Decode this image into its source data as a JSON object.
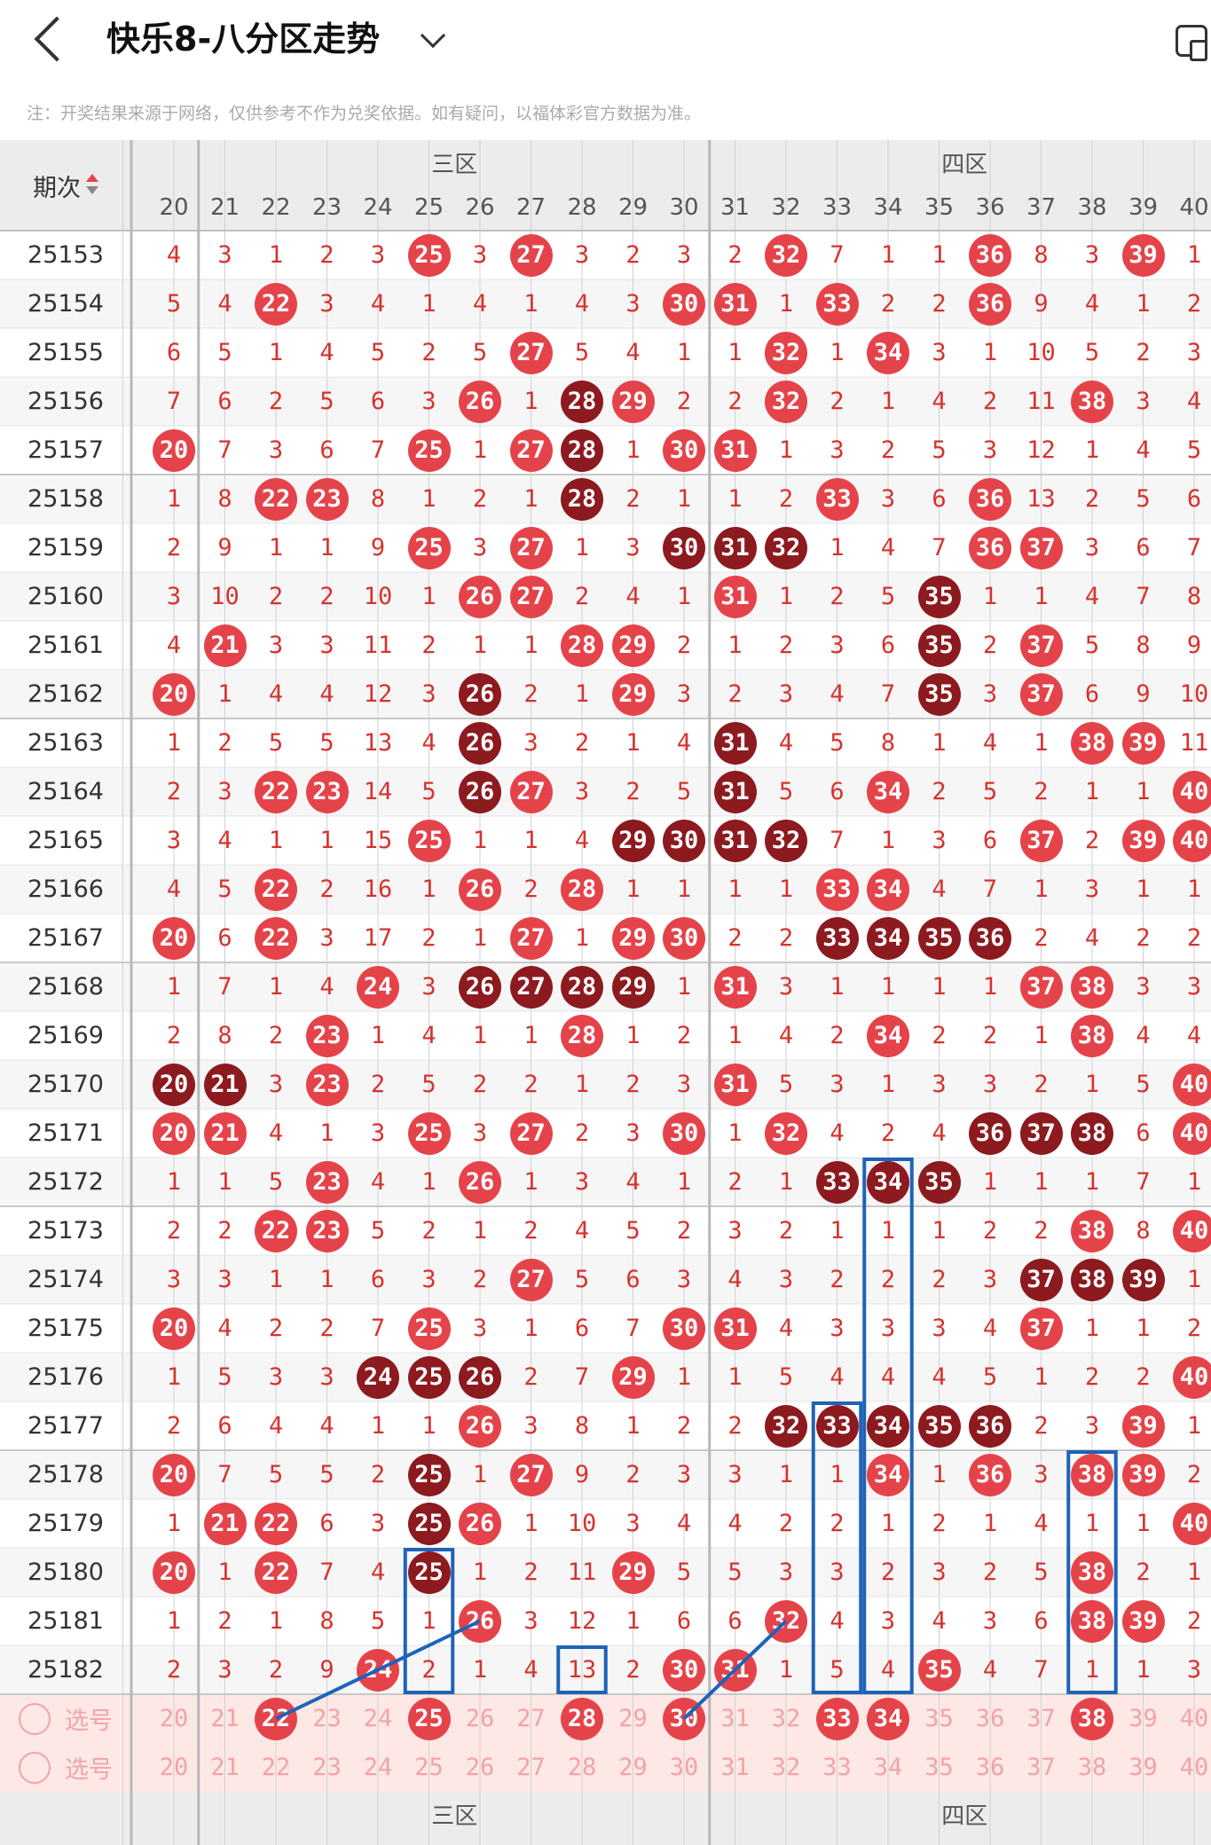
{
  "header": {
    "title": "快乐8-八分区走势"
  },
  "note": "注：开奖结果来源于网络，仅供参考不作为兑奖依据。如有疑问，以福体彩官方数据为准。",
  "table": {
    "issue_header": "期次",
    "zones": [
      {
        "label": "三区"
      },
      {
        "label": "四区"
      }
    ],
    "columns": [
      20,
      21,
      22,
      23,
      24,
      25,
      26,
      27,
      28,
      29,
      30,
      31,
      32,
      33,
      34,
      35,
      36,
      37,
      38,
      39,
      40
    ],
    "rows": [
      {
        "issue": "25153",
        "vals": [
          4,
          3,
          1,
          2,
          3,
          "25",
          3,
          "27",
          3,
          2,
          3,
          2,
          "32",
          7,
          1,
          1,
          "36",
          8,
          3,
          "39",
          1
        ]
      },
      {
        "issue": "25154",
        "vals": [
          5,
          4,
          "22",
          3,
          4,
          1,
          4,
          1,
          4,
          3,
          "30",
          "31",
          1,
          "33",
          2,
          2,
          "36",
          9,
          4,
          1,
          2
        ]
      },
      {
        "issue": "25155",
        "vals": [
          6,
          5,
          1,
          4,
          5,
          2,
          5,
          "27",
          5,
          4,
          1,
          1,
          "32",
          1,
          "34",
          3,
          1,
          10,
          5,
          2,
          3
        ]
      },
      {
        "issue": "25156",
        "vals": [
          7,
          6,
          2,
          5,
          6,
          3,
          "26",
          1,
          "d28",
          "29",
          2,
          2,
          "32",
          2,
          1,
          4,
          2,
          11,
          "38",
          3,
          4
        ]
      },
      {
        "issue": "25157",
        "vals": [
          "20",
          7,
          3,
          6,
          7,
          "25",
          1,
          "27",
          "d28",
          1,
          "30",
          "31",
          1,
          3,
          2,
          5,
          3,
          12,
          1,
          4,
          5
        ]
      },
      {
        "issue": "25158",
        "vals": [
          1,
          8,
          "22",
          "23",
          8,
          1,
          2,
          1,
          "d28",
          2,
          1,
          1,
          2,
          "33",
          3,
          6,
          "36",
          13,
          2,
          5,
          6
        ]
      },
      {
        "issue": "25159",
        "vals": [
          2,
          9,
          1,
          1,
          9,
          "25",
          3,
          "27",
          1,
          3,
          "d30",
          "d31",
          "d32",
          1,
          4,
          7,
          "36",
          "37",
          3,
          6,
          7
        ]
      },
      {
        "issue": "25160",
        "vals": [
          3,
          10,
          2,
          2,
          10,
          1,
          "26",
          "27",
          2,
          4,
          1,
          "31",
          1,
          2,
          5,
          "d35",
          1,
          1,
          4,
          7,
          8
        ]
      },
      {
        "issue": "25161",
        "vals": [
          4,
          "21",
          3,
          3,
          11,
          2,
          1,
          1,
          "28",
          "29",
          2,
          1,
          2,
          3,
          6,
          "d35",
          2,
          "37",
          5,
          8,
          9
        ]
      },
      {
        "issue": "25162",
        "vals": [
          "20",
          1,
          4,
          4,
          12,
          3,
          "d26",
          2,
          1,
          "29",
          3,
          2,
          3,
          4,
          7,
          "d35",
          3,
          "37",
          6,
          9,
          10
        ]
      },
      {
        "issue": "25163",
        "vals": [
          1,
          2,
          5,
          5,
          13,
          4,
          "d26",
          3,
          2,
          1,
          4,
          "d31",
          4,
          5,
          8,
          1,
          4,
          1,
          "38",
          "39",
          11
        ]
      },
      {
        "issue": "25164",
        "vals": [
          2,
          3,
          "22",
          "23",
          14,
          5,
          "d26",
          "27",
          3,
          2,
          5,
          "d31",
          5,
          6,
          "34",
          2,
          5,
          2,
          1,
          1,
          "40"
        ]
      },
      {
        "issue": "25165",
        "vals": [
          3,
          4,
          1,
          1,
          15,
          "25",
          1,
          1,
          4,
          "d29",
          "d30",
          "d31",
          "d32",
          7,
          1,
          3,
          6,
          "37",
          2,
          "39",
          "40"
        ]
      },
      {
        "issue": "25166",
        "vals": [
          4,
          5,
          "22",
          2,
          16,
          1,
          "26",
          2,
          "28",
          1,
          1,
          1,
          1,
          "33",
          "34",
          4,
          7,
          1,
          3,
          1,
          1
        ]
      },
      {
        "issue": "25167",
        "vals": [
          "20",
          6,
          "22",
          3,
          17,
          2,
          1,
          "27",
          1,
          "29",
          "30",
          2,
          2,
          "d33",
          "d34",
          "d35",
          "d36",
          2,
          4,
          2,
          2
        ]
      },
      {
        "issue": "25168",
        "vals": [
          1,
          7,
          1,
          4,
          "24",
          3,
          "d26",
          "d27",
          "d28",
          "d29",
          1,
          "31",
          3,
          1,
          1,
          1,
          1,
          "37",
          "38",
          3,
          3
        ]
      },
      {
        "issue": "25169",
        "vals": [
          2,
          8,
          2,
          "23",
          1,
          4,
          1,
          1,
          "28",
          1,
          2,
          1,
          4,
          2,
          "34",
          2,
          2,
          1,
          "38",
          4,
          4
        ]
      },
      {
        "issue": "25170",
        "vals": [
          "d20",
          "d21",
          3,
          "23",
          2,
          5,
          2,
          2,
          1,
          2,
          3,
          "31",
          5,
          3,
          1,
          3,
          3,
          2,
          1,
          5,
          "40"
        ]
      },
      {
        "issue": "25171",
        "vals": [
          "20",
          "21",
          4,
          1,
          3,
          "25",
          3,
          "27",
          2,
          3,
          "30",
          1,
          "32",
          4,
          2,
          4,
          "d36",
          "d37",
          "d38",
          6,
          "40"
        ]
      },
      {
        "issue": "25172",
        "vals": [
          1,
          1,
          5,
          "23",
          4,
          1,
          "26",
          1,
          3,
          4,
          1,
          2,
          1,
          "d33",
          "d34",
          "d35",
          1,
          1,
          1,
          7,
          1
        ]
      },
      {
        "issue": "25173",
        "vals": [
          2,
          2,
          "22",
          "23",
          5,
          2,
          1,
          2,
          4,
          5,
          2,
          3,
          2,
          1,
          1,
          1,
          2,
          2,
          "38",
          8,
          "40"
        ]
      },
      {
        "issue": "25174",
        "vals": [
          3,
          3,
          1,
          1,
          6,
          3,
          2,
          "27",
          5,
          6,
          3,
          4,
          3,
          2,
          2,
          2,
          3,
          "d37",
          "d38",
          "d39",
          1
        ]
      },
      {
        "issue": "25175",
        "vals": [
          "20",
          4,
          2,
          2,
          7,
          "25",
          3,
          1,
          6,
          7,
          "30",
          "31",
          4,
          3,
          3,
          3,
          4,
          "37",
          1,
          1,
          2
        ]
      },
      {
        "issue": "25176",
        "vals": [
          1,
          5,
          3,
          3,
          "d24",
          "d25",
          "d26",
          2,
          7,
          "29",
          1,
          1,
          5,
          4,
          4,
          4,
          5,
          1,
          2,
          2,
          "40"
        ]
      },
      {
        "issue": "25177",
        "vals": [
          2,
          6,
          4,
          4,
          1,
          1,
          "26",
          3,
          8,
          1,
          2,
          2,
          "d32",
          "d33",
          "d34",
          "d35",
          "d36",
          2,
          3,
          "39",
          1
        ]
      },
      {
        "issue": "25178",
        "vals": [
          "20",
          7,
          5,
          5,
          2,
          "d25",
          1,
          "27",
          9,
          2,
          3,
          3,
          1,
          1,
          "34",
          1,
          "36",
          3,
          "38",
          "39",
          2
        ]
      },
      {
        "issue": "25179",
        "vals": [
          1,
          "21",
          "22",
          6,
          3,
          "d25",
          "26",
          1,
          10,
          3,
          4,
          4,
          2,
          2,
          1,
          2,
          1,
          4,
          1,
          1,
          "40"
        ]
      },
      {
        "issue": "25180",
        "vals": [
          "20",
          1,
          "22",
          7,
          4,
          "d25",
          1,
          2,
          11,
          "29",
          5,
          5,
          3,
          3,
          2,
          3,
          2,
          5,
          "38",
          2,
          1
        ]
      },
      {
        "issue": "25181",
        "vals": [
          1,
          2,
          1,
          8,
          5,
          1,
          "26",
          3,
          12,
          1,
          6,
          6,
          "32",
          4,
          3,
          4,
          3,
          6,
          "38",
          "39",
          2
        ]
      },
      {
        "issue": "25182",
        "vals": [
          2,
          3,
          2,
          9,
          "24",
          2,
          1,
          4,
          13,
          2,
          "30",
          "31",
          1,
          5,
          4,
          "35",
          4,
          7,
          1,
          1,
          3
        ]
      }
    ],
    "pick_rows": [
      {
        "label": "选号",
        "vals": [
          20,
          21,
          "22",
          23,
          24,
          "25",
          26,
          27,
          "28",
          29,
          "30",
          31,
          32,
          "33",
          "34",
          35,
          36,
          37,
          "38",
          39,
          40
        ]
      },
      {
        "label": "选号",
        "vals": [
          20,
          21,
          22,
          23,
          24,
          25,
          26,
          27,
          28,
          29,
          30,
          31,
          32,
          33,
          34,
          35,
          36,
          37,
          38,
          39,
          40
        ]
      }
    ],
    "footer_zones": [
      {
        "label": "三区"
      },
      {
        "label": "四区"
      }
    ]
  },
  "colors": {
    "red": "#e5434a",
    "dark": "#8c1a1f",
    "frame": "#1e63b8"
  }
}
